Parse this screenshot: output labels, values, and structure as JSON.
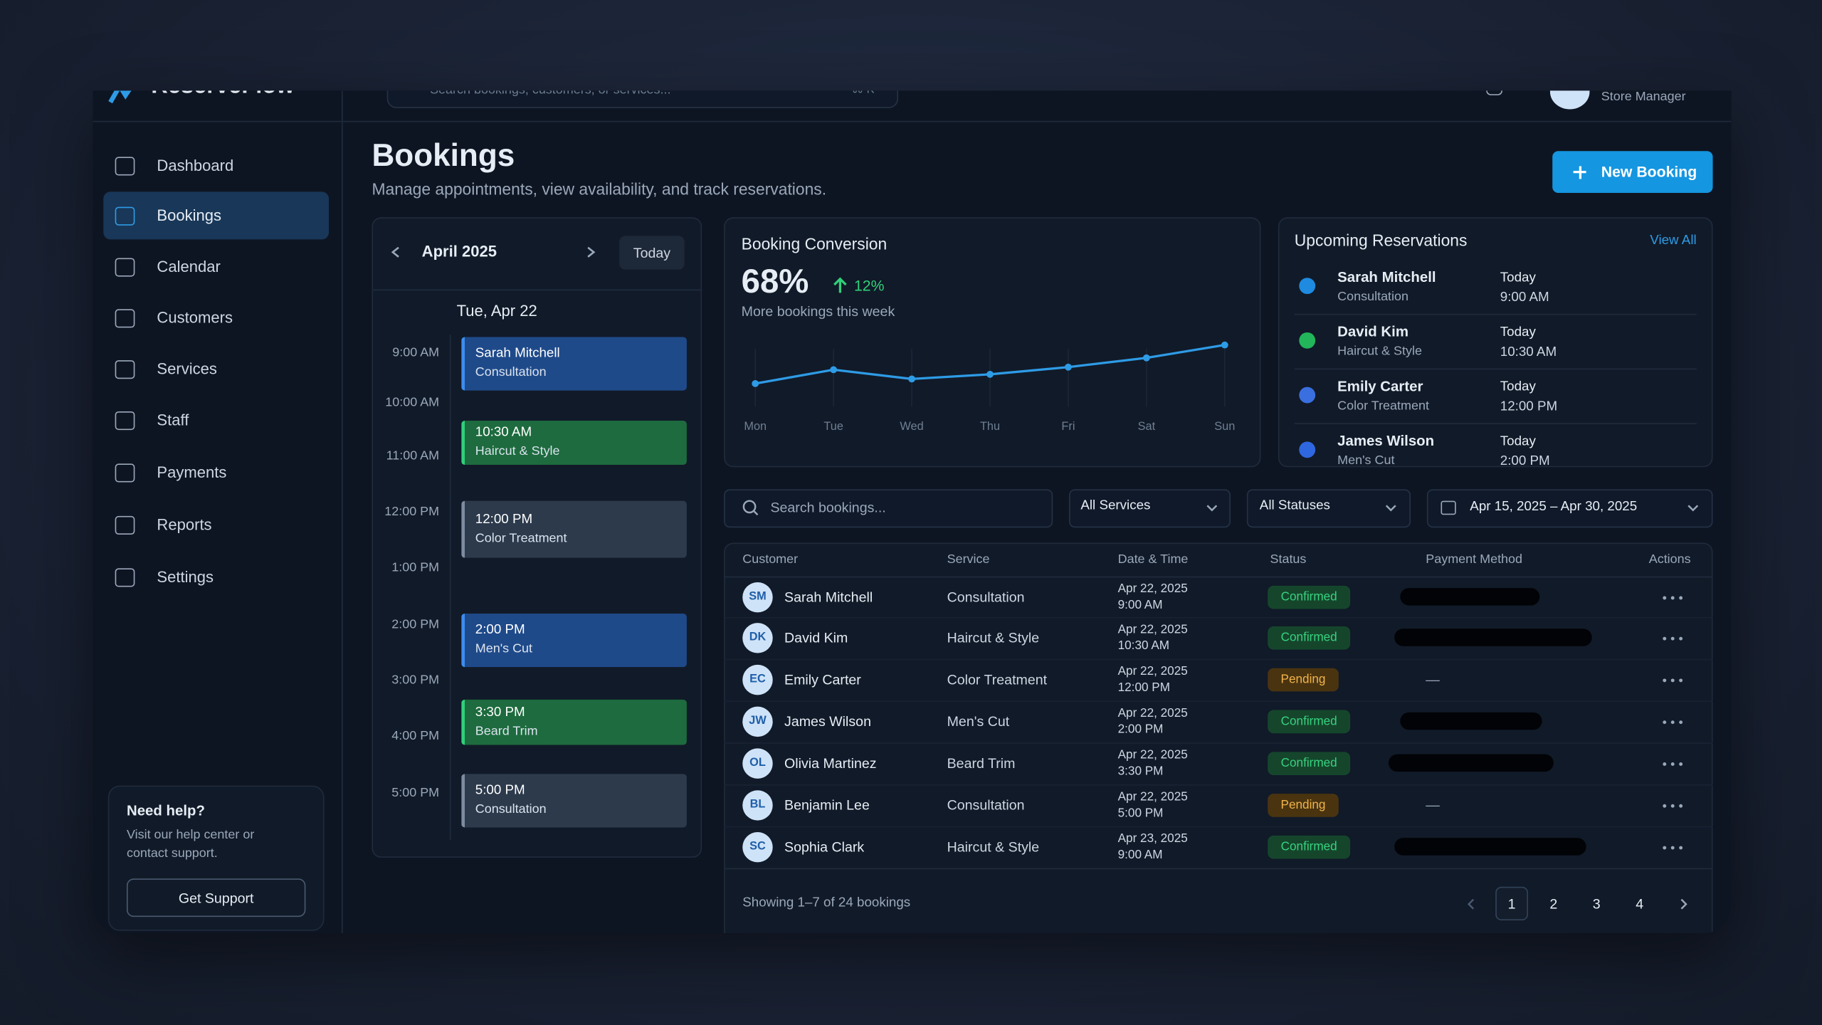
{
  "header": {
    "brand": "ReserveFlow",
    "search_placeholder": "Search bookings, customers, or services...",
    "shortcut": "⌘ K",
    "user_role": "Store Manager"
  },
  "nav": {
    "items": [
      "Dashboard",
      "Bookings",
      "Calendar",
      "Customers",
      "Services",
      "Staff",
      "Payments",
      "Reports",
      "Settings"
    ],
    "active": 1
  },
  "help": {
    "title": "Need help?",
    "text_line1": "Visit our help center or",
    "text_line2": "contact support.",
    "button": "Get Support"
  },
  "page": {
    "title": "Bookings",
    "subtitle": "Manage appointments, view availability, and track reservations.",
    "new_booking": "New Booking"
  },
  "calendar": {
    "month": "April 2025",
    "today": "Today",
    "date": "Tue, Apr 22",
    "times": [
      "9:00 AM",
      "10:00 AM",
      "11:00 AM",
      "12:00 PM",
      "1:00 PM",
      "2:00 PM",
      "3:00 PM",
      "4:00 PM",
      "5:00 PM"
    ],
    "events": [
      {
        "line1": "Sarah Mitchell",
        "line2": "Consultation",
        "color": "#1f4a8a"
      },
      {
        "line1": "10:30 AM",
        "line2": "Haircut & Style",
        "color": "#1d6b3e"
      },
      {
        "line1": "12:00 PM",
        "line2": "Color Treatment",
        "color": "#2c3a4c"
      },
      {
        "line1": "2:00 PM",
        "line2": "Men's Cut",
        "color": "#1f4a8a"
      },
      {
        "line1": "3:30 PM",
        "line2": "Beard Trim",
        "color": "#1d6b3e"
      },
      {
        "line1": "5:00 PM",
        "line2": "Consultation",
        "color": "#2c3a4c"
      }
    ]
  },
  "conversion": {
    "title": "Booking Conversion",
    "value": "68%",
    "change": "12%",
    "caption": "More bookings this week",
    "chart_data": {
      "type": "line",
      "categories": [
        "Mon",
        "Tue",
        "Wed",
        "Thu",
        "Fri",
        "Sat",
        "Sun"
      ],
      "values": [
        60.5,
        63.2,
        61.4,
        62.3,
        63.7,
        65.5,
        68
      ],
      "color": "#2e9be6",
      "ylim": [
        56,
        70
      ]
    }
  },
  "upcoming": {
    "title": "Upcoming Reservations",
    "view_all": "View All",
    "items": [
      {
        "name": "Sarah Mitchell",
        "service": "Consultation",
        "day": "Today",
        "time": "9:00 AM",
        "color": "#1e8be0"
      },
      {
        "name": "David Kim",
        "service": "Haircut & Style",
        "day": "Today",
        "time": "10:30 AM",
        "color": "#22b55a"
      },
      {
        "name": "Emily Carter",
        "service": "Color Treatment",
        "day": "Today",
        "time": "12:00 PM",
        "color": "#3a6fe0"
      },
      {
        "name": "James Wilson",
        "service": "Men's Cut",
        "day": "Today",
        "time": "2:00 PM",
        "color": "#2f67e0"
      }
    ]
  },
  "filters": {
    "search_placeholder": "Search bookings...",
    "services": "All Services",
    "statuses": "All Statuses",
    "date_range": "Apr 15, 2025 – Apr 30, 2025"
  },
  "table": {
    "columns": [
      "Customer",
      "Service",
      "Date & Time",
      "Status",
      "Payment Method",
      "Actions"
    ],
    "rows": [
      {
        "initials": "SM",
        "name": "Sarah Mitchell",
        "service": "Consultation",
        "date": "Apr 22, 2025",
        "time": "9:00 AM",
        "status": "Confirmed"
      },
      {
        "initials": "DK",
        "name": "David Kim",
        "service": "Haircut & Style",
        "date": "Apr 22, 2025",
        "time": "10:30 AM",
        "status": "Confirmed"
      },
      {
        "initials": "EC",
        "name": "Emily Carter",
        "service": "Color Treatment",
        "date": "Apr 22, 2025",
        "time": "12:00 PM",
        "status": "Pending",
        "payment": "—"
      },
      {
        "initials": "JW",
        "name": "James Wilson",
        "service": "Men's Cut",
        "date": "Apr 22, 2025",
        "time": "2:00 PM",
        "status": "Confirmed"
      },
      {
        "initials": "OL",
        "name": "Olivia Martinez",
        "service": "Beard Trim",
        "date": "Apr 22, 2025",
        "time": "3:30 PM",
        "status": "Confirmed"
      },
      {
        "initials": "BL",
        "name": "Benjamin Lee",
        "service": "Consultation",
        "date": "Apr 22, 2025",
        "time": "5:00 PM",
        "status": "Pending",
        "payment": "—"
      },
      {
        "initials": "SC",
        "name": "Sophia Clark",
        "service": "Haircut & Style",
        "date": "Apr 23, 2025",
        "time": "9:00 AM",
        "status": "Confirmed"
      }
    ]
  },
  "footer": {
    "showing": "Showing 1–7 of 24 bookings",
    "pages": [
      "1",
      "2",
      "3",
      "4"
    ],
    "current": 0
  }
}
